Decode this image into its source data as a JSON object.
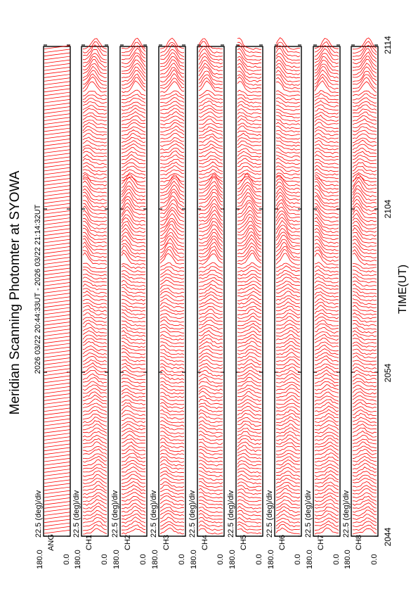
{
  "chart_data": {
    "type": "line",
    "orientation": "rotated 90 degrees counter-clockwise",
    "title": "Meridian Scanning Photomter at SYOWA",
    "subtitle": "2026 03/22 20:44:33UT - 2026 03/22 21:14:32UT",
    "xlabel": "TIME(UT)",
    "x_ticks": [
      "2044",
      "2054",
      "2104",
      "2114"
    ],
    "x_range": [
      "20:44:33",
      "21:14:32"
    ],
    "trace_color": "#ff0000",
    "panels": [
      {
        "channel": "ANG",
        "scale": "22.5 (deg)/div",
        "y_top": "180.0",
        "y_bottom": "0.0",
        "type": "ramp"
      },
      {
        "channel": "CH1",
        "scale": "22.5 (deg)/div",
        "y_top": "180.0",
        "y_bottom": "0.0",
        "type": "profile"
      },
      {
        "channel": "CH2",
        "scale": "22.5 (deg)/div",
        "y_top": "180.0",
        "y_bottom": "0.0",
        "type": "profile"
      },
      {
        "channel": "CH3",
        "scale": "22.5 (deg)/div",
        "y_top": "180.0",
        "y_bottom": "0.0",
        "type": "profile"
      },
      {
        "channel": "CH4",
        "scale": "22.5 (deg)/div",
        "y_top": "180.0",
        "y_bottom": "0.0",
        "type": "profile"
      },
      {
        "channel": "CH5",
        "scale": "22.5 (deg)/div",
        "y_top": "180.0",
        "y_bottom": "0.0",
        "type": "profile"
      },
      {
        "channel": "CH6",
        "scale": "22.5 (deg)/div",
        "y_top": "180.0",
        "y_bottom": "0.0",
        "type": "profile"
      },
      {
        "channel": "CH7",
        "scale": "22.5 (deg)/div",
        "y_top": "180.0",
        "y_bottom": "0.0",
        "type": "profile"
      },
      {
        "channel": "CH8",
        "scale": "22.5 (deg)/div",
        "y_top": "180.0",
        "y_bottom": "0.0",
        "type": "profile"
      }
    ]
  }
}
